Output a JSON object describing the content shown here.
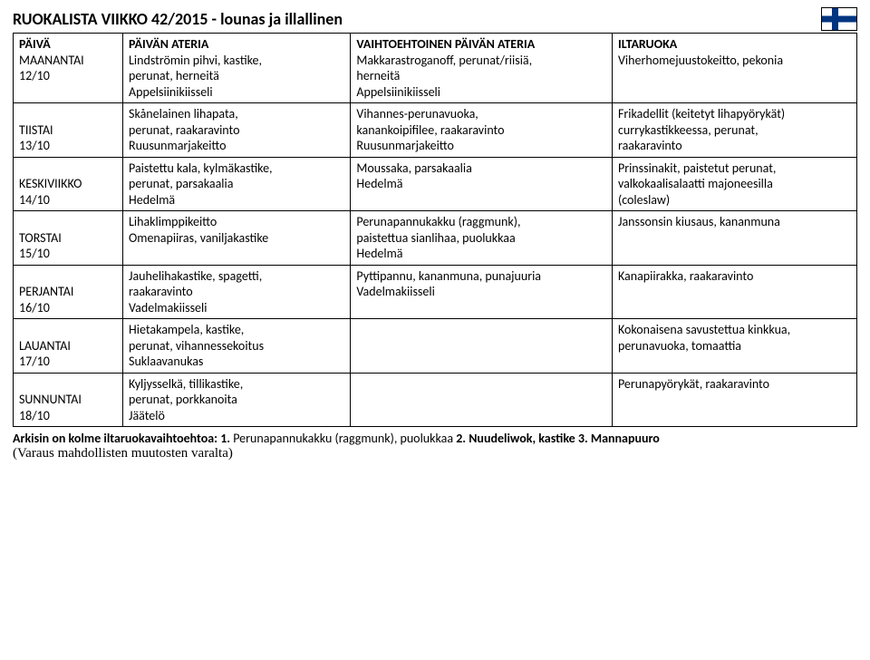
{
  "title": "RUOKALISTA VIIKKO 42/2015 - lounas ja illallinen",
  "flag": {
    "bg": "#ffffff",
    "cross": "#003580"
  },
  "columns": {
    "day": "PÄIVÄ",
    "main": "PÄIVÄN ATERIA",
    "alt": "VAIHTOEHTOINEN PÄIVÄN ATERIA",
    "evening": "ILTARUOKA"
  },
  "rows": [
    {
      "day_name": "MAANANTAI",
      "day_date": "12/10",
      "main": [
        "Lindströmin pihvi, kastike,",
        "perunat, herneitä",
        "Appelsiinikiisseli"
      ],
      "alt": [
        "Makkarastroganoff, perunat/riisiä,",
        "herneitä",
        "Appelsiinikiisseli"
      ],
      "evening": [
        "Viherhomejuustokeitto, pekonia"
      ]
    },
    {
      "day_name": "TIISTAI",
      "day_date": "13/10",
      "main": [
        "Skånelainen lihapata,",
        "perunat, raakaravinto",
        "Ruusunmarjakeitto"
      ],
      "alt": [
        "Vihannes-perunavuoka,",
        "kanankoipifilee, raakaravinto",
        "Ruusunmarjakeitto"
      ],
      "evening": [
        "Frikadellit (keitetyt lihapyörykät)",
        "currykastikkeessa, perunat,",
        "raakaravinto"
      ]
    },
    {
      "day_name": "KESKIVIIKKO",
      "day_date": "14/10",
      "main": [
        "Paistettu kala, kylmäkastike,",
        "perunat, parsakaalia",
        "Hedelmä"
      ],
      "alt": [
        "Moussaka, parsakaalia",
        "Hedelmä"
      ],
      "evening": [
        "Prinssinakit, paistetut perunat,",
        "valkokaalisalaatti majoneesilla",
        "(coleslaw)"
      ]
    },
    {
      "day_name": "TORSTAI",
      "day_date": "15/10",
      "main": [
        "Lihaklimppikeitto",
        "Omenapiiras, vaniljakastike"
      ],
      "alt": [
        "Perunapannukakku (raggmunk),",
        "paistettua sianlihaa, puolukkaa",
        "Hedelmä"
      ],
      "evening": [
        "Janssonsin kiusaus, kananmuna"
      ]
    },
    {
      "day_name": "PERJANTAI",
      "day_date": "16/10",
      "main": [
        "Jauhelihakastike, spagetti,",
        "raakaravinto",
        "Vadelmakiisseli"
      ],
      "alt": [
        "Pyttipannu, kananmuna, punajuuria",
        "Vadelmakiisseli"
      ],
      "evening": [
        "Kanapiirakka, raakaravinto"
      ]
    },
    {
      "day_name": "LAUANTAI",
      "day_date": "17/10",
      "main": [
        "Hietakampela, kastike,",
        "perunat, vihannessekoitus",
        "Suklaavanukas"
      ],
      "alt": [
        ""
      ],
      "evening": [
        "Kokonaisena savustettua kinkkua,",
        "perunavuoka, tomaattia"
      ]
    },
    {
      "day_name": "SUNNUNTAI",
      "day_date": "18/10",
      "main": [
        "Kyljysselkä, tillikastike,",
        "perunat, porkkanoita",
        "Jäätelö"
      ],
      "alt": [
        ""
      ],
      "evening": [
        "Perunapyörykät, raakaravinto"
      ]
    }
  ],
  "footer": {
    "lead_bold": "Arkisin on kolme iltaruokavaihtoehtoa: 1.",
    "opt1": " Perunapannukakku (raggmunk), puolukkaa ",
    "b2": "2.",
    "opt2": " Nuudeliwok, kastike ",
    "b3": "3.",
    "opt3": " Mannapuuro",
    "reserve": "(Varaus mahdollisten muutosten varalta)"
  }
}
